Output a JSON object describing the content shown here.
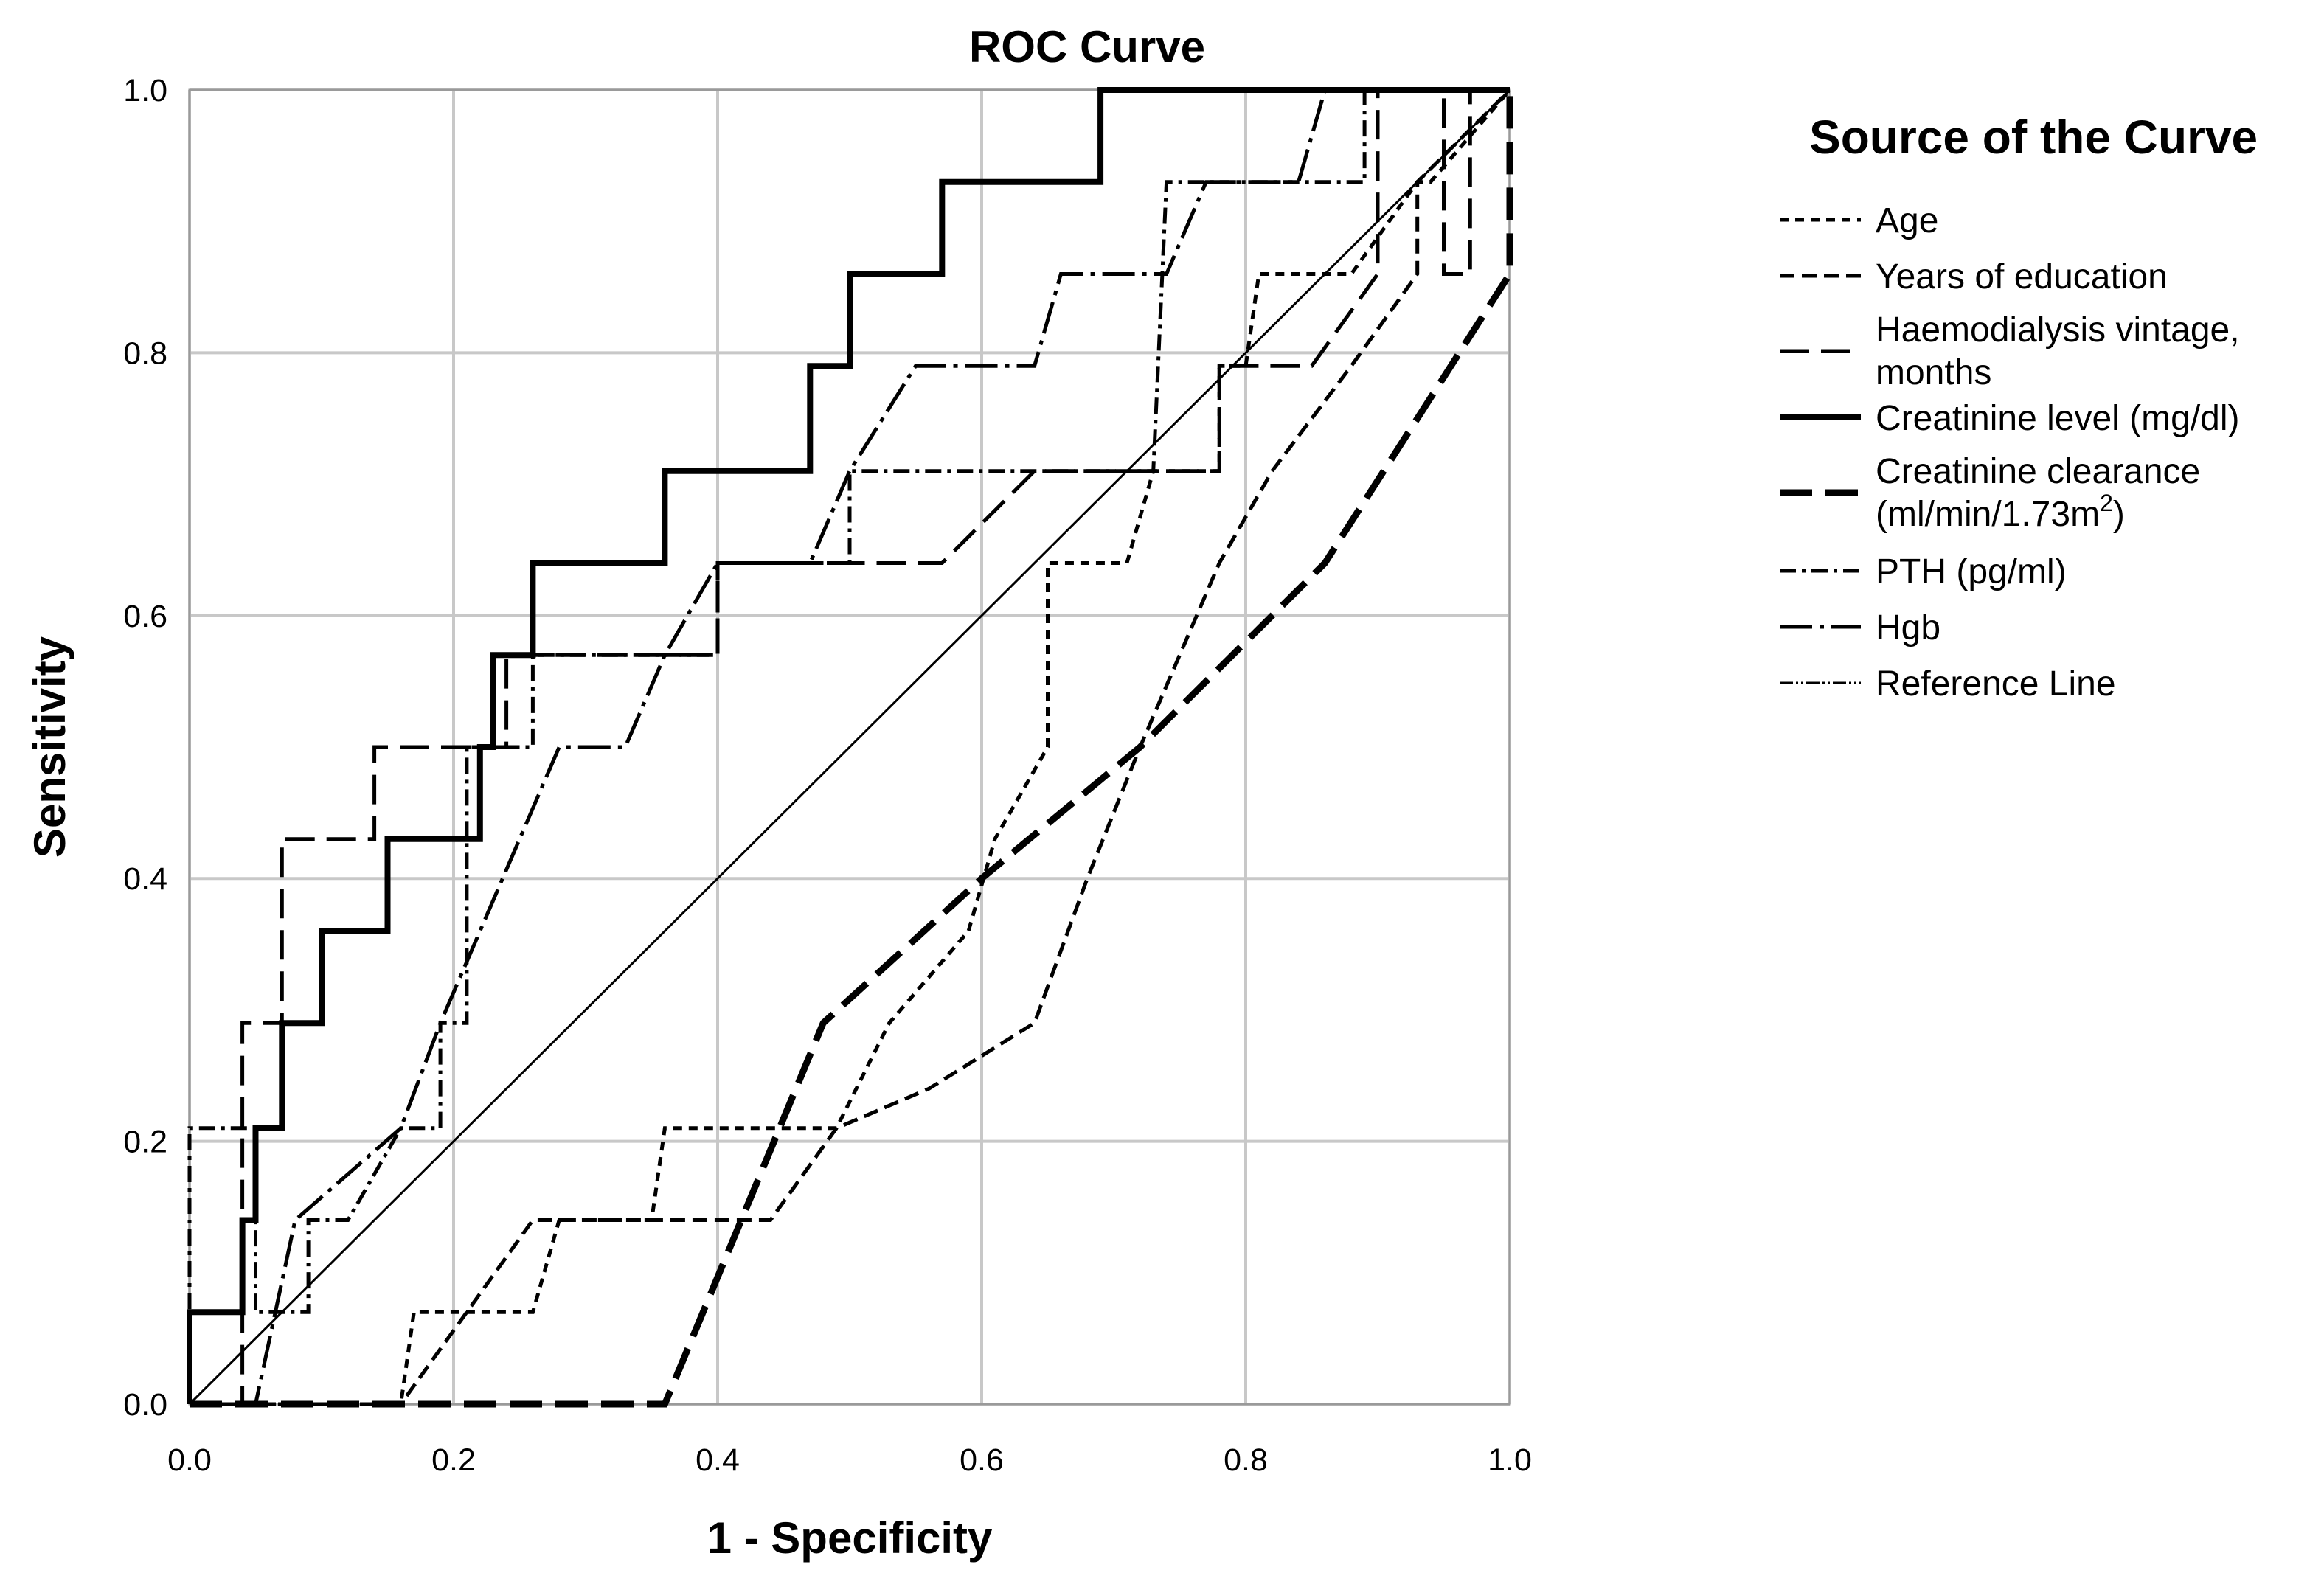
{
  "chart_data": {
    "type": "line",
    "title": "ROC Curve",
    "xlabel": "1 - Specificity",
    "ylabel": "Sensitivity",
    "xlim": [
      0,
      1
    ],
    "ylim": [
      0,
      1
    ],
    "xticks": [
      "0.0",
      "0.2",
      "0.4",
      "0.6",
      "0.8",
      "1.0"
    ],
    "yticks": [
      "0.0",
      "0.2",
      "0.4",
      "0.6",
      "0.8",
      "1.0"
    ],
    "grid": true,
    "legend": {
      "title": "Source of the Curve",
      "placement": "right"
    },
    "series": [
      {
        "name": "Age",
        "style": "dotted",
        "points": [
          [
            0,
            0
          ],
          [
            0,
            0
          ],
          [
            0.05,
            0
          ],
          [
            0.16,
            0
          ],
          [
            0.17,
            0.07
          ],
          [
            0.26,
            0.07
          ],
          [
            0.28,
            0.14
          ],
          [
            0.35,
            0.14
          ],
          [
            0.36,
            0.21
          ],
          [
            0.49,
            0.21
          ],
          [
            0.53,
            0.29
          ],
          [
            0.59,
            0.36
          ],
          [
            0.61,
            0.43
          ],
          [
            0.65,
            0.5
          ],
          [
            0.65,
            0.64
          ],
          [
            0.71,
            0.64
          ],
          [
            0.73,
            0.71
          ],
          [
            0.78,
            0.71
          ],
          [
            0.78,
            0.79
          ],
          [
            0.8,
            0.79
          ],
          [
            0.81,
            0.86
          ],
          [
            0.88,
            0.86
          ],
          [
            0.93,
            0.93
          ],
          [
            0.94,
            0.93
          ],
          [
            1,
            1
          ]
        ]
      },
      {
        "name": "Years of education",
        "style": "short-dash",
        "points": [
          [
            0,
            0
          ],
          [
            0.16,
            0
          ],
          [
            0.21,
            0.07
          ],
          [
            0.26,
            0.14
          ],
          [
            0.44,
            0.14
          ],
          [
            0.49,
            0.21
          ],
          [
            0.56,
            0.24
          ],
          [
            0.64,
            0.29
          ],
          [
            0.68,
            0.4
          ],
          [
            0.72,
            0.5
          ],
          [
            0.78,
            0.64
          ],
          [
            0.82,
            0.71
          ],
          [
            0.88,
            0.79
          ],
          [
            0.93,
            0.86
          ],
          [
            0.93,
            0.93
          ],
          [
            1,
            1
          ]
        ]
      },
      {
        "name": "Haemodialysis vintage, months",
        "style": "long-dash",
        "points": [
          [
            0,
            0
          ],
          [
            0.04,
            0
          ],
          [
            0.04,
            0.29
          ],
          [
            0.07,
            0.29
          ],
          [
            0.07,
            0.43
          ],
          [
            0.14,
            0.43
          ],
          [
            0.14,
            0.5
          ],
          [
            0.24,
            0.5
          ],
          [
            0.24,
            0.57
          ],
          [
            0.4,
            0.57
          ],
          [
            0.4,
            0.64
          ],
          [
            0.57,
            0.64
          ],
          [
            0.64,
            0.71
          ],
          [
            0.78,
            0.71
          ],
          [
            0.78,
            0.79
          ],
          [
            0.85,
            0.79
          ],
          [
            0.9,
            0.86
          ],
          [
            0.9,
            1
          ],
          [
            0.95,
            1
          ],
          [
            0.95,
            0.86
          ],
          [
            0.97,
            0.86
          ],
          [
            0.97,
            1
          ],
          [
            1,
            1
          ]
        ]
      },
      {
        "name": "Creatinine level (mg/dl)",
        "style": "solid-thick",
        "points": [
          [
            0,
            0
          ],
          [
            0,
            0.07
          ],
          [
            0.04,
            0.07
          ],
          [
            0.04,
            0.14
          ],
          [
            0.05,
            0.14
          ],
          [
            0.05,
            0.21
          ],
          [
            0.07,
            0.21
          ],
          [
            0.07,
            0.29
          ],
          [
            0.1,
            0.29
          ],
          [
            0.1,
            0.36
          ],
          [
            0.15,
            0.36
          ],
          [
            0.15,
            0.43
          ],
          [
            0.22,
            0.43
          ],
          [
            0.22,
            0.5
          ],
          [
            0.23,
            0.5
          ],
          [
            0.23,
            0.57
          ],
          [
            0.26,
            0.57
          ],
          [
            0.26,
            0.64
          ],
          [
            0.36,
            0.64
          ],
          [
            0.36,
            0.71
          ],
          [
            0.47,
            0.71
          ],
          [
            0.47,
            0.79
          ],
          [
            0.5,
            0.79
          ],
          [
            0.5,
            0.86
          ],
          [
            0.57,
            0.86
          ],
          [
            0.57,
            0.93
          ],
          [
            0.69,
            0.93
          ],
          [
            0.69,
            1
          ],
          [
            1,
            1
          ]
        ]
      },
      {
        "name": "Creatinine clearance (ml/min/1.73m²)",
        "style": "long-dash-thick",
        "points": [
          [
            0,
            0
          ],
          [
            0.36,
            0
          ],
          [
            0.48,
            0.29
          ],
          [
            0.6,
            0.4
          ],
          [
            0.72,
            0.5
          ],
          [
            0.86,
            0.64
          ],
          [
            1,
            0.86
          ],
          [
            1,
            1
          ]
        ]
      },
      {
        "name": "PTH (pg/ml)",
        "style": "dash-dot",
        "points": [
          [
            0,
            0
          ],
          [
            0,
            0.21
          ],
          [
            0.05,
            0.21
          ],
          [
            0.05,
            0.07
          ],
          [
            0.09,
            0.07
          ],
          [
            0.09,
            0.14
          ],
          [
            0.12,
            0.14
          ],
          [
            0.16,
            0.21
          ],
          [
            0.19,
            0.21
          ],
          [
            0.19,
            0.29
          ],
          [
            0.21,
            0.29
          ],
          [
            0.21,
            0.5
          ],
          [
            0.26,
            0.5
          ],
          [
            0.26,
            0.57
          ],
          [
            0.4,
            0.57
          ],
          [
            0.4,
            0.64
          ],
          [
            0.5,
            0.64
          ],
          [
            0.5,
            0.71
          ],
          [
            0.65,
            0.71
          ],
          [
            0.7,
            0.71
          ],
          [
            0.73,
            0.71
          ],
          [
            0.74,
            0.93
          ],
          [
            0.89,
            0.93
          ],
          [
            0.89,
            1
          ],
          [
            1,
            1
          ]
        ]
      },
      {
        "name": "Hgb",
        "style": "long-dash-dot",
        "points": [
          [
            0,
            0
          ],
          [
            0.05,
            0
          ],
          [
            0.08,
            0.14
          ],
          [
            0.16,
            0.21
          ],
          [
            0.19,
            0.29
          ],
          [
            0.22,
            0.36
          ],
          [
            0.28,
            0.5
          ],
          [
            0.33,
            0.5
          ],
          [
            0.36,
            0.57
          ],
          [
            0.4,
            0.64
          ],
          [
            0.47,
            0.64
          ],
          [
            0.5,
            0.71
          ],
          [
            0.55,
            0.79
          ],
          [
            0.64,
            0.79
          ],
          [
            0.66,
            0.86
          ],
          [
            0.74,
            0.86
          ],
          [
            0.77,
            0.93
          ],
          [
            0.84,
            0.93
          ],
          [
            0.86,
            1
          ],
          [
            1,
            1
          ]
        ]
      },
      {
        "name": "Reference Line",
        "style": "thin",
        "points": [
          [
            0,
            0
          ],
          [
            1,
            1
          ]
        ]
      }
    ]
  },
  "legend_entries": {
    "age": "Age",
    "education": "Years of education",
    "haemo_line1": "Haemodialysis vintage,",
    "haemo_line2": "months",
    "creatinine_level": "Creatinine level (mg/dl)",
    "clearance_line1": "Creatinine clearance",
    "clearance_line2_pre": "(ml/min/1.73m",
    "clearance_line2_sup": "2",
    "clearance_line2_post": ")",
    "pth": "PTH (pg/ml)",
    "hgb": "Hgb",
    "reference": "Reference Line"
  }
}
